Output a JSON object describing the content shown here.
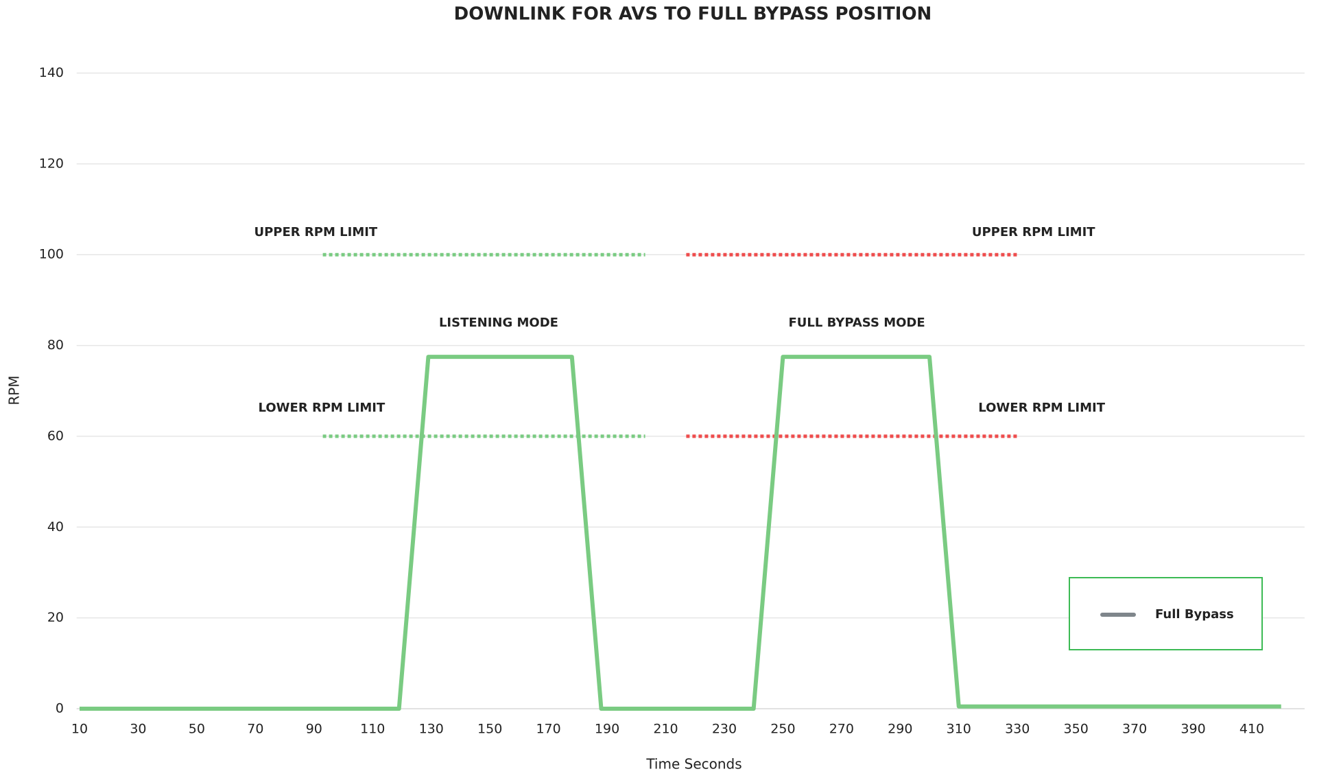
{
  "chart_data": {
    "type": "line",
    "title": "DOWNLINK FOR AVS TO FULL BYPASS POSITION",
    "x_label": "Time Seconds",
    "y_label": "RPM",
    "x": [
      10,
      119,
      129,
      178,
      188,
      240,
      250,
      300,
      310,
      420
    ],
    "series": [
      {
        "name": "Full Bypass",
        "color": "#7acb82",
        "legend_color": "#7f868b",
        "values": [
          0,
          0,
          77.5,
          77.5,
          0,
          0,
          77.5,
          77.5,
          0.5,
          0.5
        ]
      }
    ],
    "reference_lines": [
      {
        "label": "UPPER RPM LIMIT",
        "x": [
          93,
          203
        ],
        "values": [
          100,
          100
        ],
        "color": "#7acb82"
      },
      {
        "label": "LOWER RPM LIMIT",
        "x": [
          93,
          203
        ],
        "values": [
          60,
          60
        ],
        "color": "#7acb82"
      },
      {
        "label": "UPPER RPM LIMIT",
        "x": [
          217,
          330
        ],
        "values": [
          100,
          100
        ],
        "color": "#ee4d4d"
      },
      {
        "label": "LOWER RPM LIMIT",
        "x": [
          217,
          330
        ],
        "values": [
          60,
          60
        ],
        "color": "#ee4d4d"
      }
    ],
    "annotations": [
      {
        "text": "LISTENING MODE",
        "color": "#ff1a1a"
      },
      {
        "text": "FULL BYPASS MODE",
        "color": "#ff1a1a"
      }
    ],
    "xlim": [
      9,
      428
    ],
    "ylim": [
      0,
      140
    ],
    "xticks": [
      10,
      30,
      50,
      70,
      90,
      110,
      130,
      150,
      170,
      190,
      210,
      230,
      250,
      270,
      290,
      310,
      330,
      350,
      370,
      390,
      410
    ],
    "yticks": [
      0,
      20,
      40,
      60,
      80,
      100,
      120,
      140
    ],
    "grid": true,
    "legend": "lower right",
    "legend_border_color": "#3cba54",
    "title_color": "#3cba54"
  }
}
